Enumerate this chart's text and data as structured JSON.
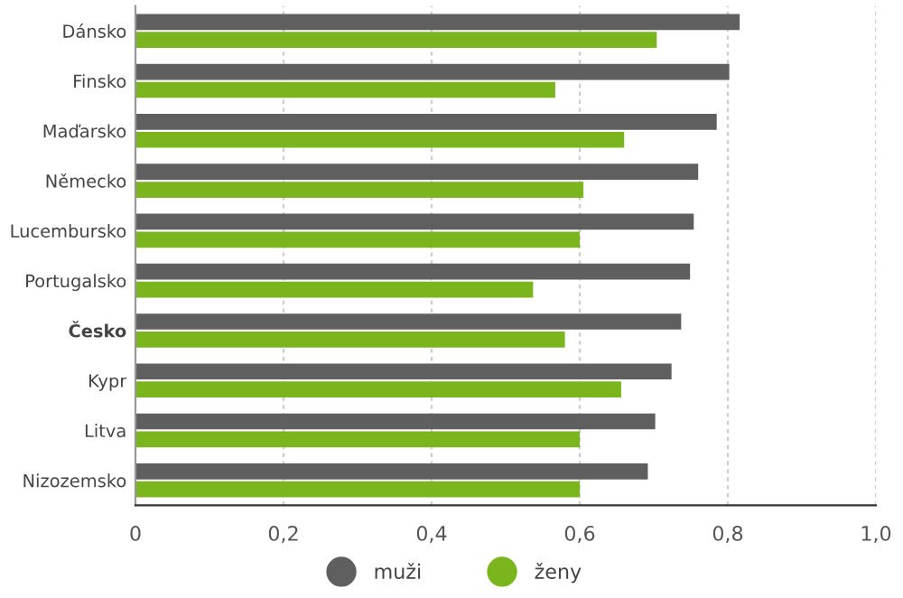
{
  "chart_data": {
    "type": "bar",
    "orientation": "horizontal",
    "categories": [
      "Dánsko",
      "Finsko",
      "Maďarsko",
      "Německo",
      "Lucembursko",
      "Portugalsko",
      "Česko",
      "Kypr",
      "Litva",
      "Nizozemsko"
    ],
    "series": [
      {
        "name": "muži",
        "color": "#5f5f5f",
        "values": [
          0.816,
          0.802,
          0.785,
          0.76,
          0.754,
          0.749,
          0.737,
          0.724,
          0.702,
          0.692
        ]
      },
      {
        "name": "ženy",
        "color": "#7ab51d",
        "values": [
          0.704,
          0.567,
          0.66,
          0.605,
          0.6,
          0.537,
          0.58,
          0.656,
          0.6,
          0.6
        ]
      }
    ],
    "xlim": [
      0,
      1.0
    ],
    "xticks": [
      {
        "value": 0,
        "label": "0"
      },
      {
        "value": 0.2,
        "label": "0,2"
      },
      {
        "value": 0.4,
        "label": "0,4"
      },
      {
        "value": 0.6,
        "label": "0,6"
      },
      {
        "value": 0.8,
        "label": "0,8"
      },
      {
        "value": 1.0,
        "label": "1,0"
      }
    ],
    "grid": "x",
    "legend": "bottom"
  }
}
